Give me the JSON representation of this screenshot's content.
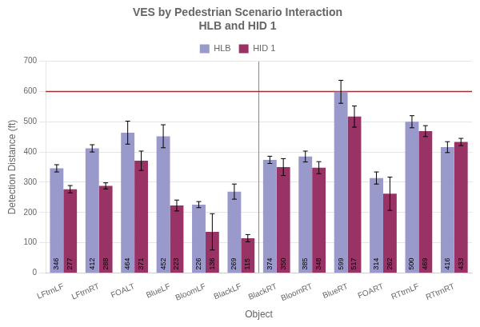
{
  "chart_data": {
    "type": "bar",
    "title": "VES by Pedestrian Scenario Interaction\nHLB and HID 1",
    "xlabel": "Object",
    "ylabel": "Detection Distance (ft)",
    "categories": [
      "LFtrnLF",
      "LFtrnRT",
      "FOALT",
      "BlueLF",
      "BloomLF",
      "BlackLF",
      "BlackRT",
      "BloomRT",
      "BlueRT",
      "FOART",
      "RTtrnLF",
      "RTtrnRT"
    ],
    "series": [
      {
        "name": "HLB",
        "color": "#9999CC",
        "values": [
          346,
          412,
          464,
          452,
          226,
          269,
          374,
          385,
          599,
          314,
          500,
          416
        ],
        "errors": [
          12,
          12,
          38,
          38,
          10,
          25,
          12,
          18,
          38,
          20,
          20,
          18
        ]
      },
      {
        "name": "HID 1",
        "color": "#993366",
        "values": [
          277,
          288,
          371,
          223,
          136,
          115,
          350,
          348,
          517,
          262,
          469,
          433
        ],
        "errors": [
          12,
          10,
          32,
          18,
          60,
          12,
          28,
          20,
          35,
          55,
          18,
          12
        ]
      }
    ],
    "lines": [
      {
        "y": 600,
        "color": "#993333"
      }
    ],
    "ylim": [
      0,
      700
    ],
    "yticks": [
      0,
      100,
      200,
      300,
      400,
      500,
      600,
      700
    ],
    "grid": true,
    "legend": "top",
    "data_labels": true
  }
}
